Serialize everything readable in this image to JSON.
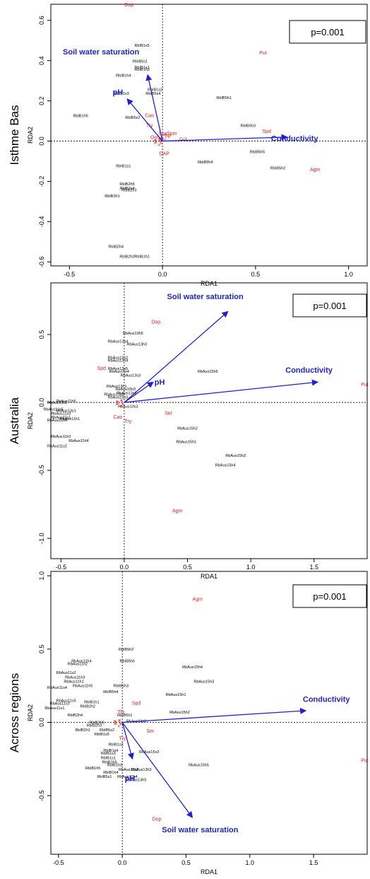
{
  "chart_data": [
    {
      "type": "scatter",
      "region": "Isthme Bas",
      "xlabel": "RDA1",
      "ylabel": "RDA2",
      "p_label": "p=0.001",
      "xlim": [
        -0.6,
        1.1
      ],
      "ylim": [
        -0.62,
        0.68
      ],
      "xticks": [
        -0.5,
        0.0,
        0.5,
        1.0
      ],
      "xtick_labels": [
        "-0.5",
        "0.0",
        "0.5",
        "1.0"
      ],
      "yticks": [
        -0.6,
        -0.4,
        -0.2,
        0.0,
        0.2,
        0.4,
        0.6
      ],
      "ytick_labels": [
        "-0.6",
        "-0.4",
        "-0.2",
        "0.0",
        "0.2",
        "0.4",
        "0.6"
      ],
      "vectors": [
        {
          "label": "Soil water saturation",
          "x": -0.08,
          "y": 0.33,
          "lx": -0.33,
          "ly": 0.43
        },
        {
          "label": "pH",
          "x": -0.19,
          "y": 0.21,
          "lx": -0.24,
          "ly": 0.23
        },
        {
          "label": "Conductivity",
          "x": 0.67,
          "y": 0.02,
          "lx": 0.71,
          "ly": 0.0
        }
      ],
      "species": [
        {
          "label": "Dop",
          "x": -0.18,
          "y": 0.67
        },
        {
          "label": "Put",
          "x": 0.54,
          "y": 0.43
        },
        {
          "label": "Cao",
          "x": -0.07,
          "y": 0.12
        },
        {
          "label": "Try",
          "x": -0.07,
          "y": 0.07
        },
        {
          "label": "Spm",
          "x": 0.05,
          "y": 0.03
        },
        {
          "label": "Php",
          "x": 0.02,
          "y": 0.02
        },
        {
          "label": "Sca",
          "x": 0.0,
          "y": 0.03
        },
        {
          "label": "Oon",
          "x": -0.04,
          "y": 0.01
        },
        {
          "label": "Ser",
          "x": 0.0,
          "y": 0.0
        },
        {
          "label": "Gcl",
          "x": 0.11,
          "y": 0.0
        },
        {
          "label": "DAP",
          "x": 0.01,
          "y": -0.07
        },
        {
          "label": "Spd",
          "x": 0.56,
          "y": 0.04
        },
        {
          "label": "Agm",
          "x": 0.82,
          "y": -0.15
        }
      ],
      "sites": [
        {
          "label": "RbIB1s5",
          "x": -0.11,
          "y": 0.47
        },
        {
          "label": "RbIB5s1",
          "x": -0.12,
          "y": 0.39
        },
        {
          "label": "RbIB1s1",
          "x": -0.11,
          "y": 0.36
        },
        {
          "label": "RbIB1h3",
          "x": -0.11,
          "y": 0.35
        },
        {
          "label": "RbIB1h4",
          "x": -0.21,
          "y": 0.32
        },
        {
          "label": "RbIB1s2",
          "x": -0.04,
          "y": 0.25
        },
        {
          "label": "RbIB5s4",
          "x": -0.05,
          "y": 0.23
        },
        {
          "label": "RbIB1s3",
          "x": -0.22,
          "y": 0.23
        },
        {
          "label": "RbIB5h1",
          "x": 0.33,
          "y": 0.21
        },
        {
          "label": "RbIB1h5",
          "x": -0.44,
          "y": 0.12
        },
        {
          "label": "RbIB5s2",
          "x": -0.16,
          "y": 0.11
        },
        {
          "label": "RbIB5h3",
          "x": 0.46,
          "y": 0.07
        },
        {
          "label": "RbIB5h5",
          "x": 0.51,
          "y": -0.06
        },
        {
          "label": "RbIB5h4",
          "x": 0.23,
          "y": -0.11
        },
        {
          "label": "RbIB1s1",
          "x": -0.21,
          "y": -0.13
        },
        {
          "label": "RbIB5h2",
          "x": 0.62,
          "y": -0.14
        },
        {
          "label": "RbIB2h5",
          "x": -0.19,
          "y": -0.22
        },
        {
          "label": "RbIB2s4",
          "x": -0.19,
          "y": -0.24
        },
        {
          "label": "RbIB2h3",
          "x": -0.18,
          "y": -0.25
        },
        {
          "label": "RbIB2h1",
          "x": -0.27,
          "y": -0.28
        },
        {
          "label": "RbIB2h4",
          "x": -0.25,
          "y": -0.53
        },
        {
          "label": "RbIB2h2",
          "x": -0.19,
          "y": -0.58
        },
        {
          "label": "RbIB1h1",
          "x": -0.11,
          "y": -0.58
        }
      ]
    },
    {
      "type": "scatter",
      "region": "Australia",
      "xlabel": "RDA1",
      "ylabel": "RDA2",
      "p_label": "p=0.001",
      "xlim": [
        -0.58,
        1.92
      ],
      "ylim": [
        -1.15,
        0.88
      ],
      "xticks": [
        -0.5,
        0.0,
        0.5,
        1.0,
        1.5
      ],
      "xtick_labels": [
        "-0.5",
        "0.0",
        "0.5",
        "1.0",
        "1.5"
      ],
      "yticks": [
        -1.0,
        -0.5,
        0.0,
        0.5
      ],
      "ytick_labels": [
        "-1.0",
        "-0.5",
        "0.0",
        "0.5"
      ],
      "vectors": [
        {
          "label": "Soil water saturation",
          "x": 0.82,
          "y": 0.67,
          "lx": 0.64,
          "ly": 0.76
        },
        {
          "label": "pH",
          "x": 0.23,
          "y": 0.15,
          "lx": 0.28,
          "ly": 0.13
        },
        {
          "label": "Conductivity",
          "x": 1.53,
          "y": 0.15,
          "lx": 1.46,
          "ly": 0.22
        }
      ],
      "species": [
        {
          "label": "Dop",
          "x": 0.25,
          "y": 0.58
        },
        {
          "label": "Spd",
          "x": -0.18,
          "y": 0.24
        },
        {
          "label": "Put",
          "x": 1.9,
          "y": 0.12
        },
        {
          "label": "Ser",
          "x": 0.35,
          "y": -0.09
        },
        {
          "label": "Cao",
          "x": -0.05,
          "y": -0.12
        },
        {
          "label": "Try",
          "x": 0.03,
          "y": -0.15
        },
        {
          "label": "Agm",
          "x": 0.42,
          "y": -0.81
        }
      ],
      "sites": [
        {
          "label": "RbAus13h5",
          "x": 0.07,
          "y": 0.5
        },
        {
          "label": "RbAus13s4",
          "x": -0.05,
          "y": 0.44
        },
        {
          "label": "RbAus13h3",
          "x": 0.1,
          "y": 0.42
        },
        {
          "label": "RbAus15s2",
          "x": -0.05,
          "y": 0.32
        },
        {
          "label": "RbAus13h4",
          "x": -0.05,
          "y": 0.3
        },
        {
          "label": "RbAus13s5",
          "x": -0.05,
          "y": 0.24
        },
        {
          "label": "RbAus15s4",
          "x": -0.04,
          "y": 0.22
        },
        {
          "label": "RbAus13s3",
          "x": 0.05,
          "y": 0.19
        },
        {
          "label": "RbAus15h5",
          "x": 0.66,
          "y": 0.22
        },
        {
          "label": "RbAus13h1",
          "x": -0.06,
          "y": 0.11
        },
        {
          "label": "RbAus15h3",
          "x": 0.01,
          "y": 0.09
        },
        {
          "label": "RbAus13s2",
          "x": 0.02,
          "y": 0.06
        },
        {
          "label": "RbAus15s5",
          "x": -0.08,
          "y": 0.05
        },
        {
          "label": "RbAus15s3",
          "x": -0.05,
          "y": 0.03
        },
        {
          "label": "RbAus13s3",
          "x": 0.03,
          "y": -0.04
        },
        {
          "label": "RbAus11h5",
          "x": -0.46,
          "y": 0.0
        },
        {
          "label": "RbAus13s1",
          "x": -0.53,
          "y": -0.01
        },
        {
          "label": "RbAus11s5",
          "x": -0.56,
          "y": -0.06
        },
        {
          "label": "RbAus13s1",
          "x": -0.46,
          "y": -0.07
        },
        {
          "label": "RbAus11s3",
          "x": -0.5,
          "y": -0.09
        },
        {
          "label": "RbAus11s1",
          "x": -0.5,
          "y": -0.12
        },
        {
          "label": "RbAus11h1",
          "x": -0.43,
          "y": -0.13
        },
        {
          "label": "RbAus11h4",
          "x": -0.53,
          "y": -0.14
        },
        {
          "label": "RbAus15h2",
          "x": 0.5,
          "y": -0.2
        },
        {
          "label": "RbAus11h2",
          "x": -0.5,
          "y": -0.26
        },
        {
          "label": "RbAus11h4",
          "x": -0.36,
          "y": -0.29
        },
        {
          "label": "RbAus15h1",
          "x": 0.49,
          "y": -0.3
        },
        {
          "label": "RbAus11s2",
          "x": -0.53,
          "y": -0.33
        },
        {
          "label": "RbAus15h3",
          "x": 0.88,
          "y": -0.4
        },
        {
          "label": "RbAus15h4",
          "x": 0.8,
          "y": -0.47
        }
      ]
    },
    {
      "type": "scatter",
      "region": "Across regions",
      "xlabel": "RDA1",
      "ylabel": "RDA2",
      "p_label": "p=0.001",
      "xlim": [
        -0.56,
        1.92
      ],
      "ylim": [
        -0.9,
        1.03
      ],
      "xticks": [
        -0.5,
        0.0,
        0.5,
        1.0,
        1.5
      ],
      "xtick_labels": [
        "-0.5",
        "0.0",
        "0.5",
        "1.0",
        "1.5"
      ],
      "yticks": [
        -0.5,
        0.0,
        0.5,
        1.0
      ],
      "ytick_labels": [
        "-0.5",
        "0.0",
        "0.5",
        "1.0"
      ],
      "vectors": [
        {
          "label": "Soil water saturation",
          "x": 0.55,
          "y": -0.65,
          "lx": 0.61,
          "ly": -0.75
        },
        {
          "label": "pH",
          "x": 0.08,
          "y": -0.25,
          "lx": 0.06,
          "ly": -0.4
        },
        {
          "label": "Conductivity",
          "x": 1.44,
          "y": 0.08,
          "lx": 1.6,
          "ly": 0.14
        }
      ],
      "species": [
        {
          "label": "Agm",
          "x": 0.59,
          "y": 0.83
        },
        {
          "label": "Spd",
          "x": 0.11,
          "y": 0.12
        },
        {
          "label": "Ser",
          "x": 0.22,
          "y": -0.07
        },
        {
          "label": "Put",
          "x": 1.9,
          "y": -0.27
        },
        {
          "label": "Dop",
          "x": 0.27,
          "y": -0.67
        },
        {
          "label": "Tlb",
          "x": -0.01,
          "y": 0.06
        },
        {
          "label": "Try",
          "x": 0.0,
          "y": -0.12
        }
      ],
      "sites": [
        {
          "label": "RbAus11h4",
          "x": -0.32,
          "y": 0.41
        },
        {
          "label": "RbAus11h2",
          "x": -0.35,
          "y": 0.39
        },
        {
          "label": "RbIB5h2",
          "x": 0.03,
          "y": 0.49
        },
        {
          "label": "RbIB5h5",
          "x": 0.04,
          "y": 0.41
        },
        {
          "label": "RbAus15h4",
          "x": 0.55,
          "y": 0.37
        },
        {
          "label": "RbAus11s2",
          "x": -0.44,
          "y": 0.33
        },
        {
          "label": "RbAus11h3",
          "x": -0.37,
          "y": 0.3
        },
        {
          "label": "RbAus15h3",
          "x": 0.64,
          "y": 0.27
        },
        {
          "label": "RbAus11h1",
          "x": -0.38,
          "y": 0.27
        },
        {
          "label": "RbAus11h5",
          "x": -0.31,
          "y": 0.24
        },
        {
          "label": "RbIB5h3",
          "x": -0.01,
          "y": 0.24
        },
        {
          "label": "RbAus11s4",
          "x": -0.51,
          "y": 0.23
        },
        {
          "label": "RbIB5h4",
          "x": -0.09,
          "y": 0.2
        },
        {
          "label": "RbAus15h1",
          "x": 0.42,
          "y": 0.18
        },
        {
          "label": "RbAus11s5",
          "x": -0.44,
          "y": 0.14
        },
        {
          "label": "RbIB1h1",
          "x": -0.24,
          "y": 0.13
        },
        {
          "label": "RbAus11s3",
          "x": -0.49,
          "y": 0.12
        },
        {
          "label": "RbIB2h2",
          "x": -0.27,
          "y": 0.1
        },
        {
          "label": "RbAus11s1",
          "x": -0.53,
          "y": 0.09
        },
        {
          "label": "RbAus15h2",
          "x": 0.45,
          "y": 0.06
        },
        {
          "label": "RbIB2h4",
          "x": -0.37,
          "y": 0.04
        },
        {
          "label": "RbIB5h1",
          "x": 0.02,
          "y": 0.04
        },
        {
          "label": "RbAus13s3",
          "x": 0.11,
          "y": 0.0
        },
        {
          "label": "RbIB2h5",
          "x": -0.2,
          "y": -0.01
        },
        {
          "label": "RbIB2h3",
          "x": -0.22,
          "y": -0.03
        },
        {
          "label": "RbIB2h1",
          "x": -0.31,
          "y": -0.06
        },
        {
          "label": "RbIB5s2",
          "x": -0.12,
          "y": -0.06
        },
        {
          "label": "RbIB1s5",
          "x": -0.16,
          "y": -0.09
        },
        {
          "label": "RbIB1s2",
          "x": -0.05,
          "y": -0.16
        },
        {
          "label": "RbIB1s4",
          "x": -0.09,
          "y": -0.2
        },
        {
          "label": "RbIB1s3",
          "x": -0.11,
          "y": -0.22
        },
        {
          "label": "RbAus15s3",
          "x": 0.21,
          "y": -0.21
        },
        {
          "label": "RbIB1s1",
          "x": -0.11,
          "y": -0.25
        },
        {
          "label": "RbIB1h5",
          "x": -0.1,
          "y": -0.28
        },
        {
          "label": "RbAus15h5",
          "x": 0.6,
          "y": -0.3
        },
        {
          "label": "RbIB1h3",
          "x": -0.06,
          "y": -0.3
        },
        {
          "label": "RbIB1h5",
          "x": -0.23,
          "y": -0.32
        },
        {
          "label": "RbAus15s2",
          "x": 0.05,
          "y": -0.33
        },
        {
          "label": "RbAus13h3",
          "x": 0.15,
          "y": -0.33
        },
        {
          "label": "RbIB1h4",
          "x": -0.09,
          "y": -0.35
        },
        {
          "label": "RbIB5s1",
          "x": -0.14,
          "y": -0.38
        },
        {
          "label": "RbAus13h4",
          "x": 0.04,
          "y": -0.38
        },
        {
          "label": "RbAus13h5",
          "x": 0.11,
          "y": -0.4
        }
      ]
    }
  ]
}
